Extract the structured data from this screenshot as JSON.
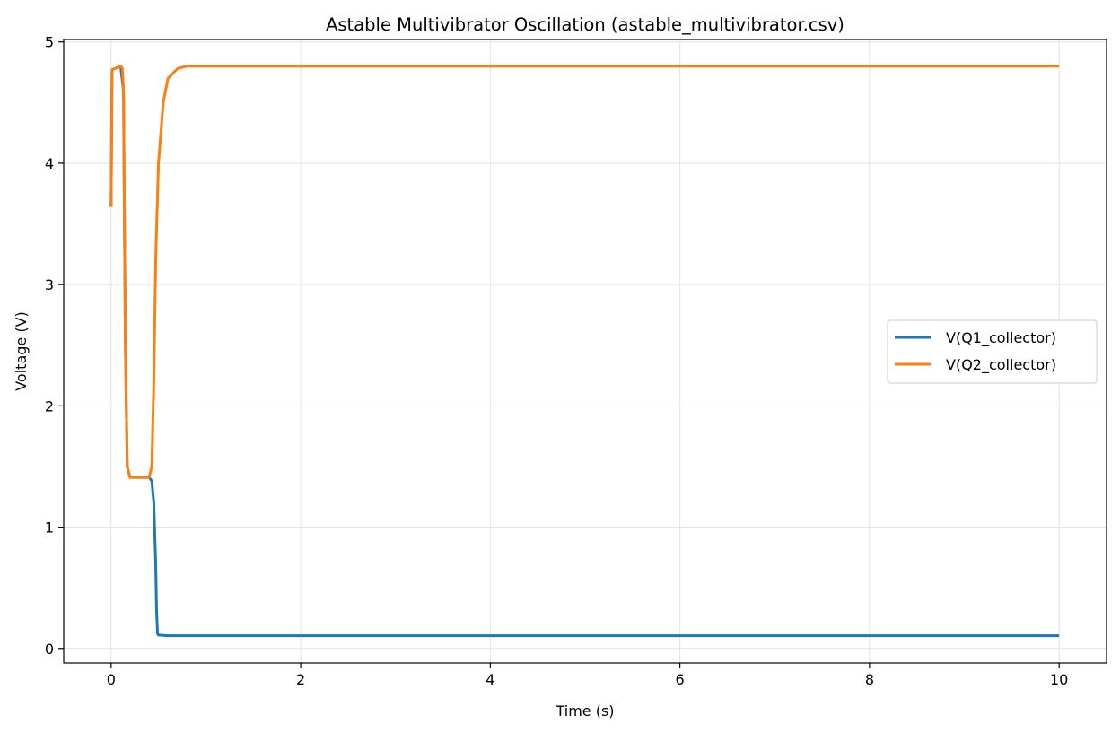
{
  "chart_data": {
    "type": "line",
    "title": "Astable Multivibrator Oscillation (astable_multivibrator.csv)",
    "xlabel": "Time (s)",
    "ylabel": "Voltage (V)",
    "xlim": [
      -0.5,
      10.5
    ],
    "ylim": [
      -0.12,
      5.02
    ],
    "xticks": [
      0,
      2,
      4,
      6,
      8,
      10
    ],
    "yticks": [
      0,
      1,
      2,
      3,
      4,
      5
    ],
    "xtick_labels": [
      "0",
      "2",
      "4",
      "6",
      "8",
      "10"
    ],
    "ytick_labels": [
      "0",
      "1",
      "2",
      "3",
      "4",
      "5"
    ],
    "grid": true,
    "legend_position": "center-right",
    "series": [
      {
        "name": "V(Q1_collector)",
        "color": "#1f77b4",
        "x": [
          0,
          0.01,
          0.1,
          0.13,
          0.15,
          0.17,
          0.2,
          0.3,
          0.4,
          0.43,
          0.45,
          0.47,
          0.48,
          0.49,
          0.5,
          0.6,
          1.0,
          2.0,
          4.0,
          6.0,
          8.0,
          10.0
        ],
        "y": [
          3.64,
          4.77,
          4.8,
          4.6,
          2.5,
          1.5,
          1.41,
          1.41,
          1.41,
          1.38,
          1.2,
          0.7,
          0.3,
          0.12,
          0.11,
          0.105,
          0.105,
          0.105,
          0.105,
          0.105,
          0.105,
          0.105
        ]
      },
      {
        "name": "V(Q2_collector)",
        "color": "#ff7f0e",
        "x": [
          0,
          0.01,
          0.1,
          0.12,
          0.13,
          0.15,
          0.17,
          0.2,
          0.3,
          0.4,
          0.43,
          0.45,
          0.47,
          0.5,
          0.55,
          0.6,
          0.7,
          0.8,
          1.0,
          2.0,
          4.0,
          6.0,
          8.0,
          10.0
        ],
        "y": [
          3.64,
          4.77,
          4.8,
          4.78,
          4.6,
          2.5,
          1.5,
          1.41,
          1.41,
          1.41,
          1.5,
          2.2,
          3.2,
          4.0,
          4.5,
          4.7,
          4.78,
          4.8,
          4.8,
          4.8,
          4.8,
          4.8,
          4.8,
          4.8
        ]
      }
    ]
  }
}
